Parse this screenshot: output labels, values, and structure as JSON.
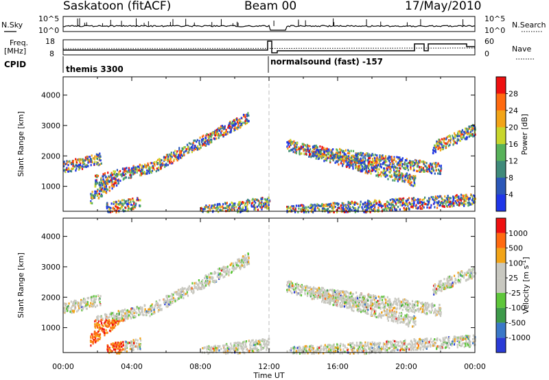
{
  "header": {
    "station": "Saskatoon (fitACF)",
    "beam": "Beam 00",
    "date": "17/May/2010"
  },
  "top_panels": {
    "nsky_label": "N.Sky",
    "nsearch_label": "N.Search",
    "noise_ticks_left": [
      "10^5",
      "10^0"
    ],
    "noise_ticks_right": [
      "10^5",
      "10^0"
    ],
    "freq_label_1": "Freq.",
    "freq_label_2": "[MHz]",
    "freq_ticks": [
      "18",
      "8"
    ],
    "nave_label": "Nave",
    "nave_ticks": [
      "60",
      "0"
    ],
    "cpid_label": "CPID",
    "cpid_left": "themis 3300",
    "cpid_right": "normalsound (fast) -157"
  },
  "chart_data": [
    {
      "type": "heatmap",
      "quantity": "Power",
      "ylabel": "Slant Range [km]",
      "ylim": [
        180,
        4600
      ],
      "yticks": [
        1000,
        2000,
        3000,
        4000
      ],
      "xlim": [
        "00:00",
        "24:00"
      ],
      "colorbar_label": "Power [dB]",
      "colorbar_ticks": [
        "4",
        "8",
        "12",
        "16",
        "20",
        "24",
        "28"
      ],
      "colors": [
        "#1f36e8",
        "#2b57b8",
        "#3f8a7a",
        "#58b25a",
        "#c8d62c",
        "#f2a418",
        "#ff6a10",
        "#ee1010"
      ],
      "bands": [
        {
          "t0": 0.0,
          "t1": 2.2,
          "r0": 1650,
          "r1": 1950
        },
        {
          "t0": 1.8,
          "t1": 5.0,
          "r0": 1200,
          "r1": 1650
        },
        {
          "t0": 5.0,
          "t1": 10.8,
          "r0": 1600,
          "r1": 3300
        },
        {
          "t0": 1.5,
          "t1": 3.2,
          "r0": 600,
          "r1": 1300
        },
        {
          "t0": 2.5,
          "t1": 4.5,
          "r0": 300,
          "r1": 500
        },
        {
          "t0": 8.0,
          "t1": 12.0,
          "r0": 200,
          "r1": 500
        },
        {
          "t0": 13.0,
          "t1": 20.5,
          "r0": 2400,
          "r1": 1200
        },
        {
          "t0": 14.5,
          "t1": 22.0,
          "r0": 2200,
          "r1": 1600
        },
        {
          "t0": 13.0,
          "t1": 24.0,
          "r0": 200,
          "r1": 600
        },
        {
          "t0": 21.5,
          "t1": 24.0,
          "r0": 2300,
          "r1": 2900
        }
      ]
    },
    {
      "type": "heatmap",
      "quantity": "Velocity",
      "ylabel": "Slant Range [km]",
      "ylim": [
        180,
        4600
      ],
      "yticks": [
        1000,
        2000,
        3000,
        4000
      ],
      "xlim": [
        "00:00",
        "24:00"
      ],
      "xticks": [
        "00:00",
        "04:00",
        "08:00",
        "12:00",
        "16:00",
        "20:00",
        "00:00"
      ],
      "xlabel": "Time UT",
      "colorbar_label": "Velocity [m s",
      "colorbar_unit_sup": "-1",
      "colorbar_unit_close": "]",
      "colorbar_ticks": [
        "1000",
        "500",
        "100",
        "25",
        "-25",
        "-100",
        "-500",
        "-1000"
      ],
      "colors": [
        "#2a3bd6",
        "#3a78c8",
        "#3e9a4a",
        "#5ec63a",
        "#c8c8c0",
        "#c8c8c0",
        "#f2a418",
        "#ff6a10",
        "#ee1010"
      ],
      "bands": [
        {
          "t0": 0.0,
          "t1": 2.2,
          "r0": 1650,
          "r1": 1950
        },
        {
          "t0": 1.8,
          "t1": 5.0,
          "r0": 1200,
          "r1": 1650
        },
        {
          "t0": 5.0,
          "t1": 10.8,
          "r0": 1600,
          "r1": 3300
        },
        {
          "t0": 1.5,
          "t1": 3.2,
          "r0": 600,
          "r1": 1300
        },
        {
          "t0": 2.5,
          "t1": 4.5,
          "r0": 300,
          "r1": 500
        },
        {
          "t0": 8.0,
          "t1": 12.0,
          "r0": 200,
          "r1": 500
        },
        {
          "t0": 13.0,
          "t1": 20.5,
          "r0": 2400,
          "r1": 1200
        },
        {
          "t0": 14.5,
          "t1": 22.0,
          "r0": 2200,
          "r1": 1600
        },
        {
          "t0": 13.0,
          "t1": 24.0,
          "r0": 200,
          "r1": 600
        },
        {
          "t0": 21.5,
          "t1": 24.0,
          "r0": 2300,
          "r1": 2900
        }
      ]
    }
  ]
}
